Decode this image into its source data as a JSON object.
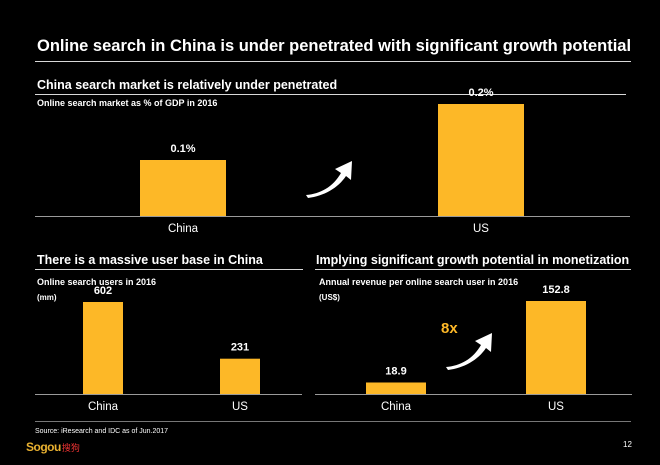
{
  "page": {
    "title": "Online search in China is under penetrated with significant growth potential",
    "source": "Source: iResearch and IDC as of Jun.2017",
    "page_number": "12",
    "logo_text": "Sogou",
    "logo_cn": "搜狗",
    "accent_color": "#FDB827"
  },
  "panels": [
    {
      "heading": "China search market is relatively under penetrated",
      "subheading": "Online search market  as % of GDP in 2016",
      "unit": ""
    },
    {
      "heading": "There is a massive user base in China",
      "subheading": "Online search users in 2016",
      "unit": "(mm)"
    },
    {
      "heading": "Implying significant growth potential in monetization",
      "subheading": "Annual revenue per online search user in 2016",
      "unit": "(US$)",
      "annotation": "8x"
    }
  ],
  "chart_data": [
    {
      "type": "bar",
      "title": "China search market is relatively under penetrated",
      "categories": [
        "China",
        "US"
      ],
      "values": [
        0.1,
        0.2
      ],
      "labels": [
        "0.1%",
        "0.2%"
      ],
      "ylabel": "Online search market  as % of GDP in 2016",
      "ylim": [
        0,
        0.27
      ]
    },
    {
      "type": "bar",
      "title": "There is a massive user base in China",
      "categories": [
        "China",
        "US"
      ],
      "values": [
        602,
        231
      ],
      "labels": [
        "602",
        "231"
      ],
      "ylabel": "Online search users in 2016 (mm)",
      "ylim": [
        0,
        730
      ]
    },
    {
      "type": "bar",
      "title": "Implying significant growth potential in monetization",
      "categories": [
        "China",
        "US"
      ],
      "values": [
        18.9,
        152.8
      ],
      "labels": [
        "18.9",
        "152.8"
      ],
      "ylabel": "Annual revenue per online search user in 2016 (US$)",
      "ylim": [
        0,
        185
      ]
    }
  ]
}
